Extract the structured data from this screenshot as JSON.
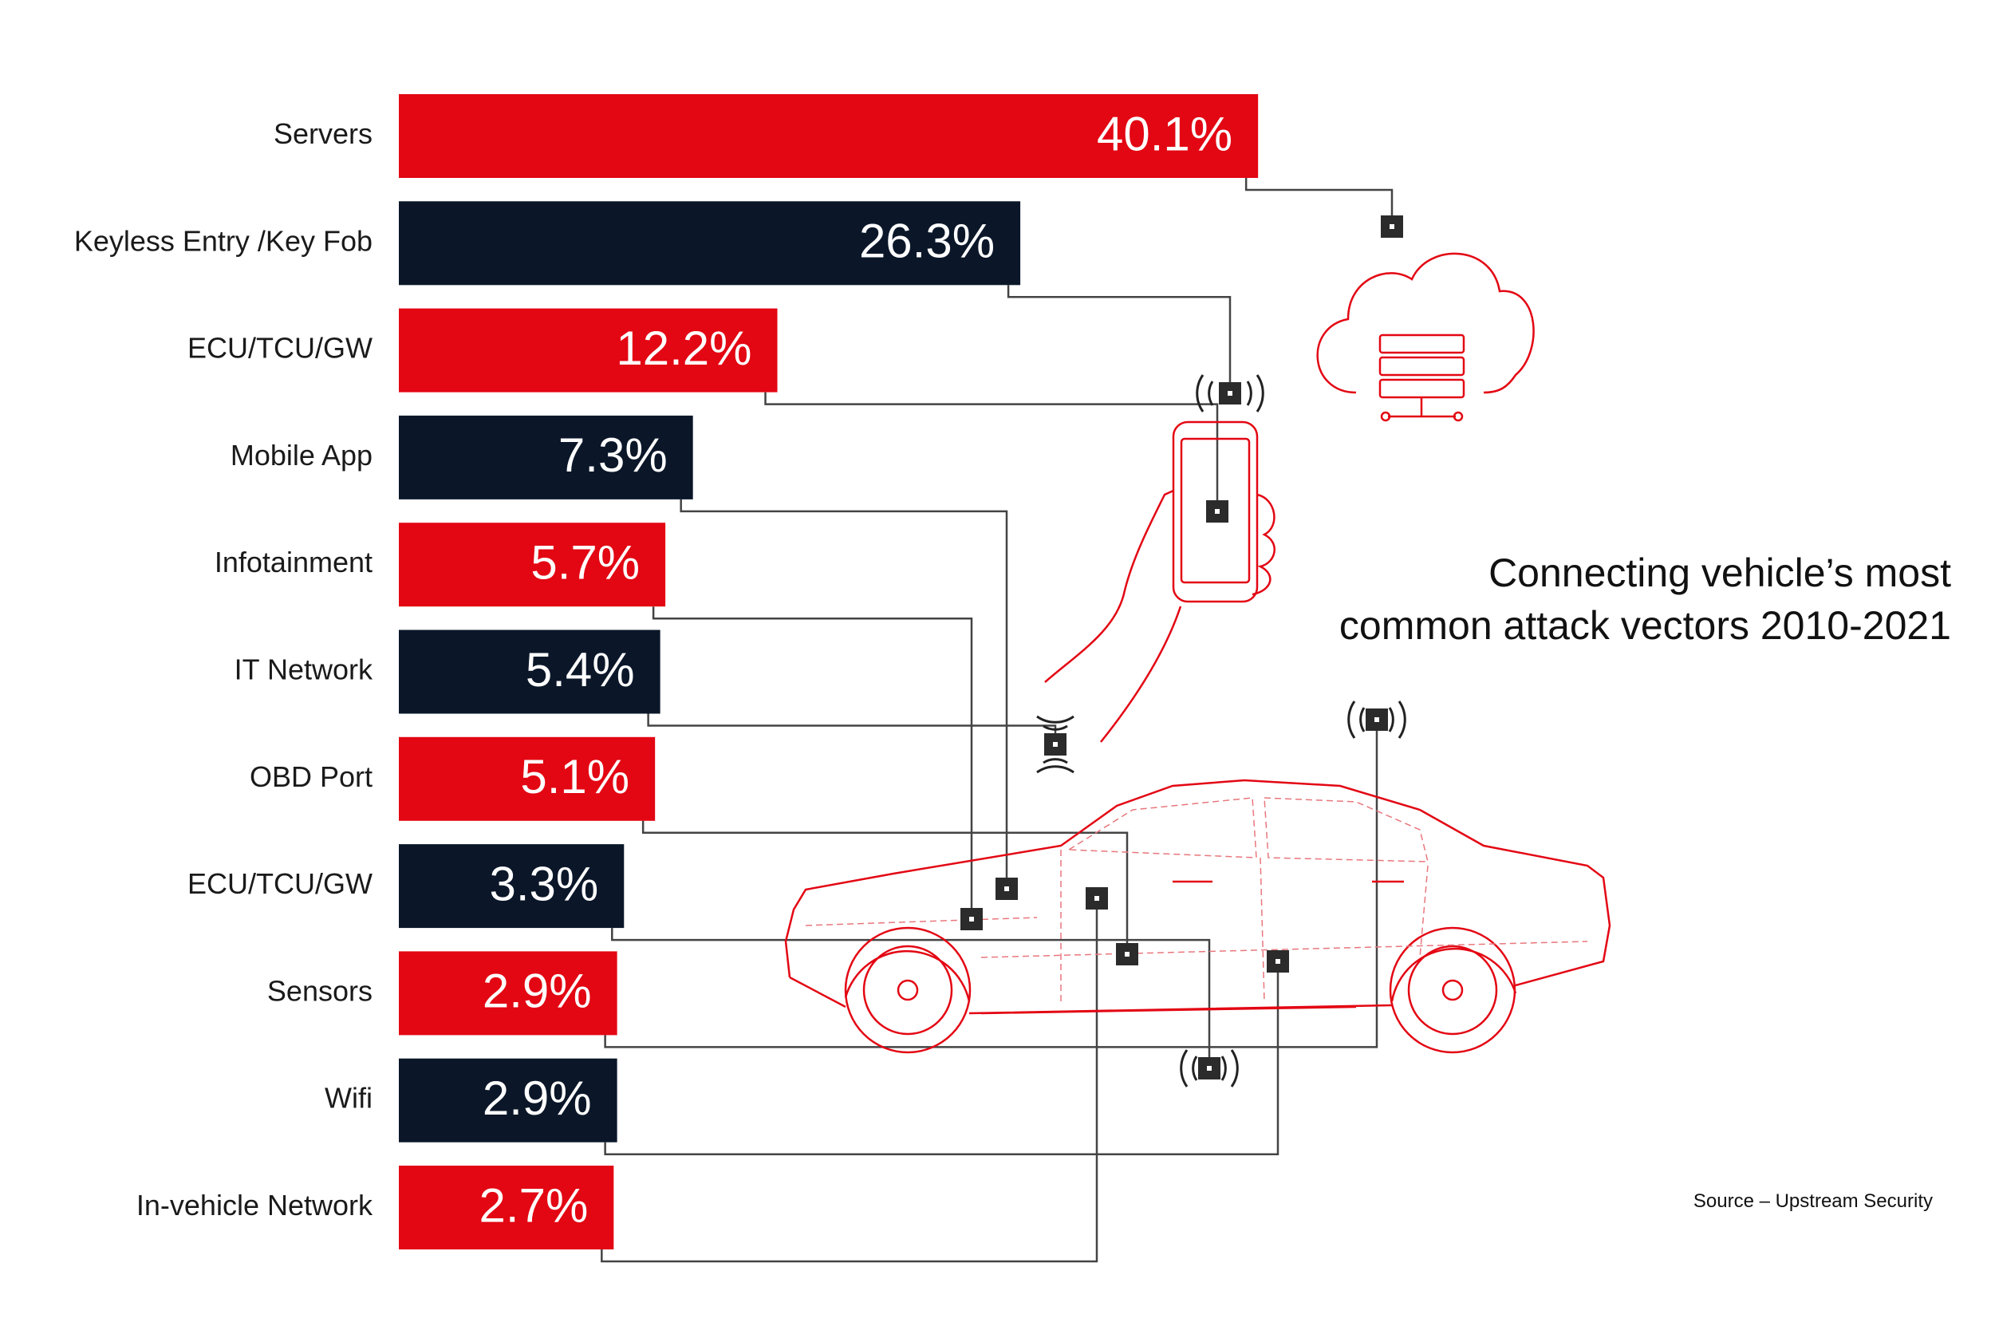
{
  "chart_data": {
    "type": "bar",
    "orientation": "horizontal",
    "title": "Connecting vehicle’s most common attack vectors 2010-2021",
    "source": "Source – Upstream Security",
    "categories": [
      "Servers",
      "Keyless Entry /Key Fob",
      "ECU/TCU/GW",
      "Mobile App",
      "Infotainment",
      "IT Network",
      "OBD Port",
      "ECU/TCU/GW",
      "Sensors",
      "Wifi",
      "In-vehicle Network"
    ],
    "values": [
      40.1,
      26.3,
      12.2,
      7.3,
      5.7,
      5.4,
      5.1,
      3.3,
      2.9,
      2.9,
      2.7
    ],
    "value_labels": [
      "40.1%",
      "26.3%",
      "12.2%",
      "7.3%",
      "5.7%",
      "5.4%",
      "5.1%",
      "3.3%",
      "2.9%",
      "2.9%",
      "2.7%"
    ],
    "colors": [
      "#e30613",
      "#0b1729",
      "#e30613",
      "#0b1729",
      "#e30613",
      "#0b1729",
      "#e30613",
      "#0b1729",
      "#e30613",
      "#0b1729",
      "#e30613"
    ]
  }
}
